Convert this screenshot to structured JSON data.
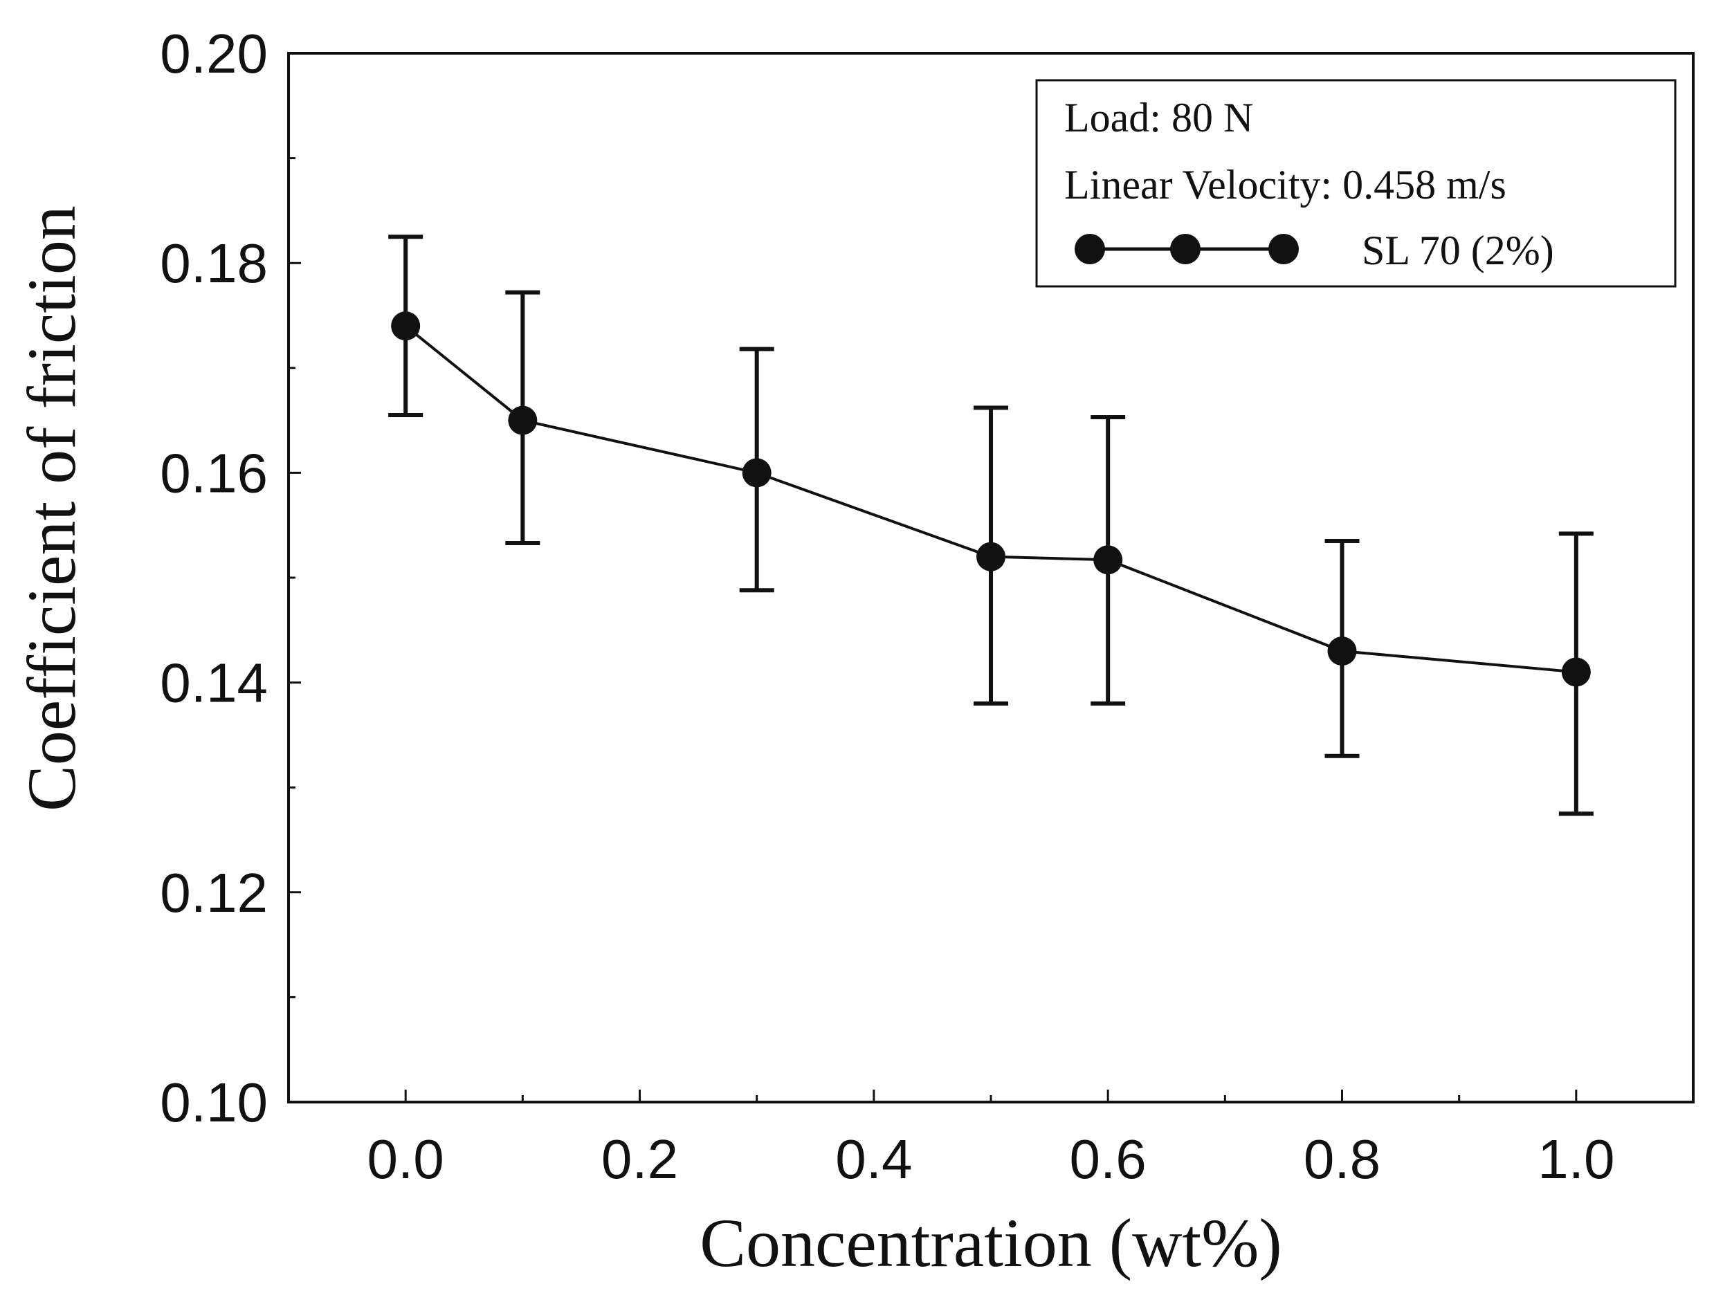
{
  "chart_data": {
    "type": "line",
    "title": "",
    "xlabel": "Concentration (wt%)",
    "ylabel": "Coefficient of friction",
    "xlim": [
      -0.1,
      1.1
    ],
    "ylim": [
      0.1,
      0.2
    ],
    "x_ticks": [
      0.0,
      0.2,
      0.4,
      0.6,
      0.8,
      1.0
    ],
    "x_tick_labels": [
      "0.0",
      "0.2",
      "0.4",
      "0.6",
      "0.8",
      "1.0"
    ],
    "x_minor_ticks": [
      0.1,
      0.3,
      0.5,
      0.7,
      0.9
    ],
    "y_ticks": [
      0.1,
      0.12,
      0.14,
      0.16,
      0.18,
      0.2
    ],
    "y_tick_labels": [
      "0.10",
      "0.12",
      "0.14",
      "0.16",
      "0.18",
      "0.20"
    ],
    "y_minor_ticks": [
      0.11,
      0.13,
      0.15,
      0.17,
      0.19
    ],
    "grid": false,
    "legend_position": "top-right",
    "annotations": [
      "Load: 80 N",
      "Linear Velocity: 0.458 m/s"
    ],
    "series": [
      {
        "name": "SL 70 (2%)",
        "marker": "circle",
        "color": "#111111",
        "x": [
          0.0,
          0.1,
          0.3,
          0.5,
          0.6,
          0.8,
          1.0
        ],
        "y": [
          0.174,
          0.165,
          0.16,
          0.152,
          0.1517,
          0.143,
          0.141
        ],
        "error_low": [
          0.1655,
          0.1533,
          0.1488,
          0.138,
          0.138,
          0.133,
          0.1275
        ],
        "error_high": [
          0.1825,
          0.1772,
          0.1718,
          0.1662,
          0.1653,
          0.1535,
          0.1542
        ]
      }
    ]
  }
}
